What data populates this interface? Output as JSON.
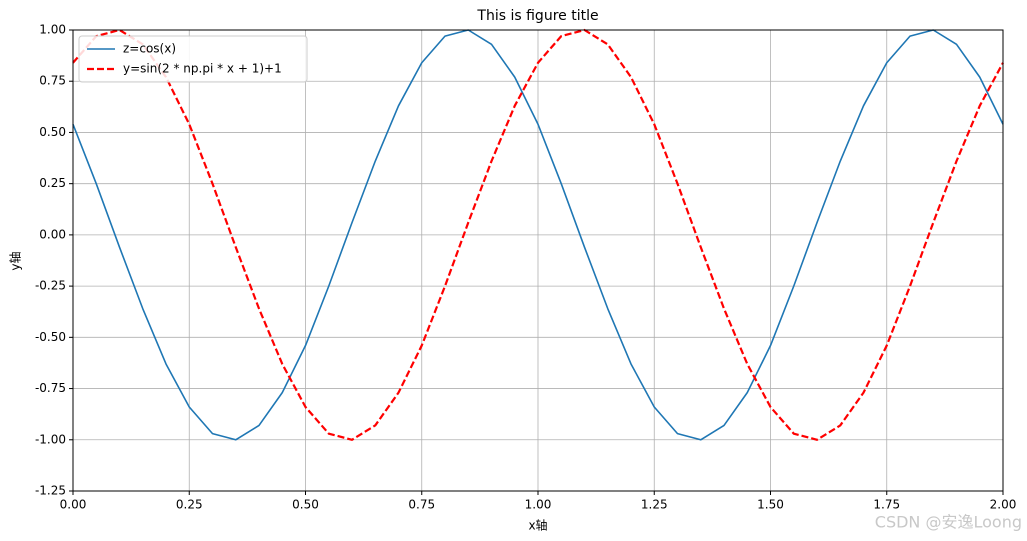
{
  "chart_data": {
    "type": "line",
    "title": "This is figure title",
    "x_label": "x轴",
    "y_label": "y轴",
    "watermark": "CSDN @安逸Loong",
    "x": [
      0,
      0.05,
      0.1,
      0.15,
      0.2,
      0.25,
      0.3,
      0.35,
      0.4,
      0.45,
      0.5,
      0.55,
      0.6,
      0.65,
      0.7,
      0.75,
      0.8,
      0.85,
      0.9,
      0.95,
      1,
      1.05,
      1.1,
      1.15,
      1.2,
      1.25,
      1.3,
      1.35,
      1.4,
      1.45,
      1.5,
      1.55,
      1.6,
      1.65,
      1.7,
      1.75,
      1.8,
      1.85,
      1.9,
      1.95,
      2
    ],
    "series": [
      {
        "name": "z=cos(x)",
        "color": "#1f77b4",
        "linestyle": "solid",
        "values": [
          0.54,
          0.25,
          -0.06,
          -0.36,
          -0.63,
          -0.84,
          -0.97,
          -1.0,
          -0.93,
          -0.77,
          -0.54,
          -0.25,
          0.06,
          0.36,
          0.63,
          0.84,
          0.97,
          1.0,
          0.93,
          0.77,
          0.54,
          0.25,
          -0.06,
          -0.36,
          -0.63,
          -0.84,
          -0.97,
          -1.0,
          -0.93,
          -0.77,
          -0.54,
          -0.25,
          0.06,
          0.36,
          0.63,
          0.84,
          0.97,
          1.0,
          0.93,
          0.77,
          0.54
        ]
      },
      {
        "name": "y=sin(2 * np.pi * x + 1)+1",
        "color": "#ff0000",
        "linestyle": "dashed",
        "values": [
          0.84,
          0.97,
          1.0,
          0.93,
          0.77,
          0.54,
          0.25,
          -0.06,
          -0.36,
          -0.63,
          -0.84,
          -0.97,
          -1.0,
          -0.93,
          -0.77,
          -0.54,
          -0.25,
          0.06,
          0.36,
          0.63,
          0.84,
          0.97,
          1.0,
          0.93,
          0.77,
          0.54,
          0.25,
          -0.06,
          -0.36,
          -0.63,
          -0.84,
          -0.97,
          -1.0,
          -0.93,
          -0.77,
          -0.54,
          -0.25,
          0.06,
          0.36,
          0.63,
          0.84
        ]
      }
    ],
    "xlim": [
      0,
      2
    ],
    "ylim": [
      -1.25,
      1
    ],
    "xticks": [
      {
        "value": 0,
        "label": "0.00"
      },
      {
        "value": 0.25,
        "label": "0.25"
      },
      {
        "value": 0.5,
        "label": "0.50"
      },
      {
        "value": 0.75,
        "label": "0.75"
      },
      {
        "value": 1,
        "label": "1.00"
      },
      {
        "value": 1.25,
        "label": "1.25"
      },
      {
        "value": 1.5,
        "label": "1.50"
      },
      {
        "value": 1.75,
        "label": "1.75"
      },
      {
        "value": 2,
        "label": "2.00"
      }
    ],
    "yticks": [
      {
        "value": -1.25,
        "label": "-1.25"
      },
      {
        "value": -1,
        "label": "-1.00"
      },
      {
        "value": -0.75,
        "label": "-0.75"
      },
      {
        "value": -0.5,
        "label": "-0.50"
      },
      {
        "value": -0.25,
        "label": "-0.25"
      },
      {
        "value": 0,
        "label": "0.00"
      },
      {
        "value": 0.25,
        "label": "0.25"
      },
      {
        "value": 0.5,
        "label": "0.50"
      },
      {
        "value": 0.75,
        "label": "0.75"
      },
      {
        "value": 1,
        "label": "1.00"
      }
    ],
    "grid": true,
    "legend": "upper left"
  }
}
